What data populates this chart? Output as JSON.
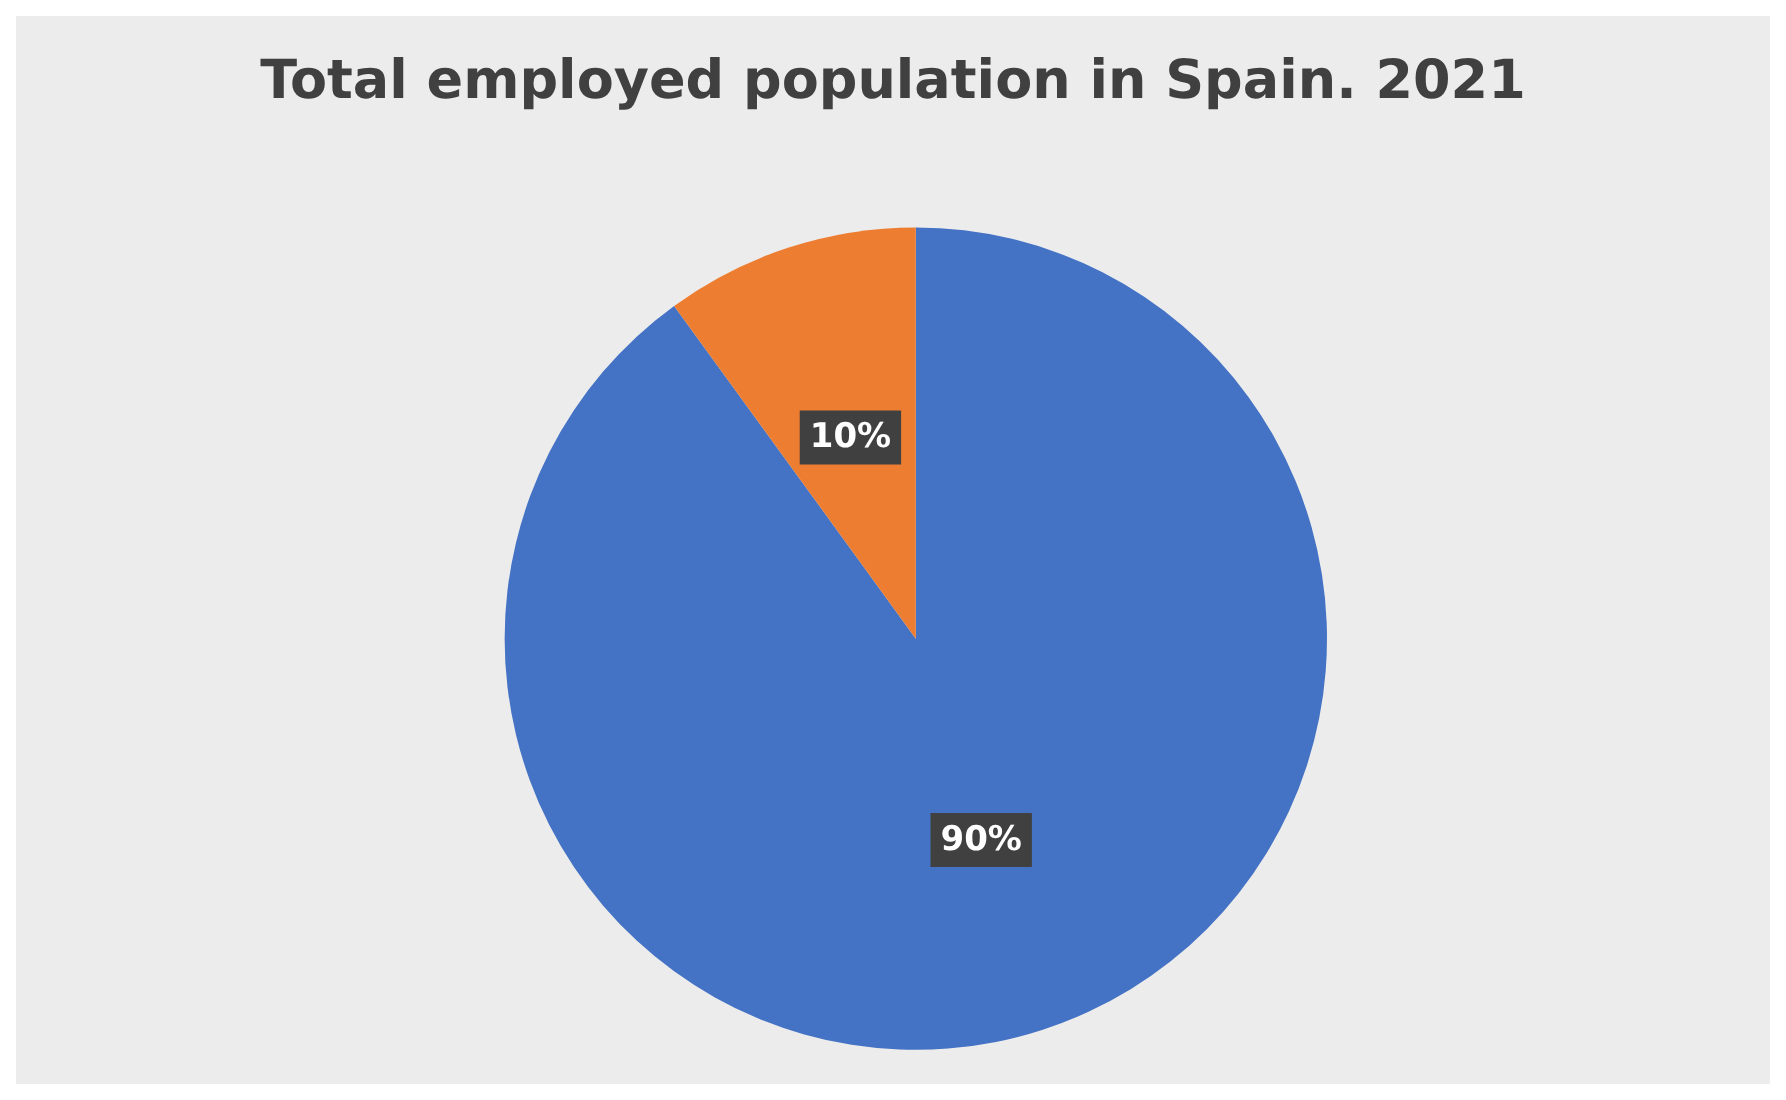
{
  "chart_data": {
    "type": "pie",
    "title": "Total employed population in Spain. 2021",
    "categories": [
      null,
      null
    ],
    "values": [
      90,
      10
    ],
    "colors": [
      "#4472c4",
      "#ed7d31"
    ],
    "value_labels": [
      "90%",
      "10%"
    ]
  }
}
